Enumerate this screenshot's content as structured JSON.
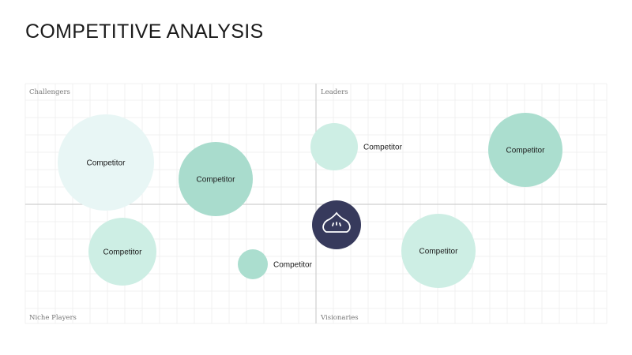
{
  "title": "COMPETITIVE ANALYSIS",
  "quadrants": {
    "top_left": "Challengers",
    "top_right": "Leaders",
    "bottom_left": "Niche Players",
    "bottom_right": "Visionaries"
  },
  "bubbles": [
    {
      "label": "Competitor",
      "color": "#e8f6f5"
    },
    {
      "label": "Competitor",
      "color": "#a9dccd"
    },
    {
      "label": "Competitor",
      "color": "#cdeee4"
    },
    {
      "label": "Competitor",
      "color": "#abdecf"
    },
    {
      "label": "Competitor",
      "color": "#cdeee4"
    },
    {
      "label": "Competitor",
      "color": "#abdecf"
    },
    {
      "label": "Competitor",
      "color": "#cdeee4"
    }
  ],
  "own_company": {
    "icon": "dumpling-logo-icon",
    "color": "#373a5c"
  },
  "colors": {
    "grid": "#eeeeee",
    "axis": "#cfcfcf"
  }
}
